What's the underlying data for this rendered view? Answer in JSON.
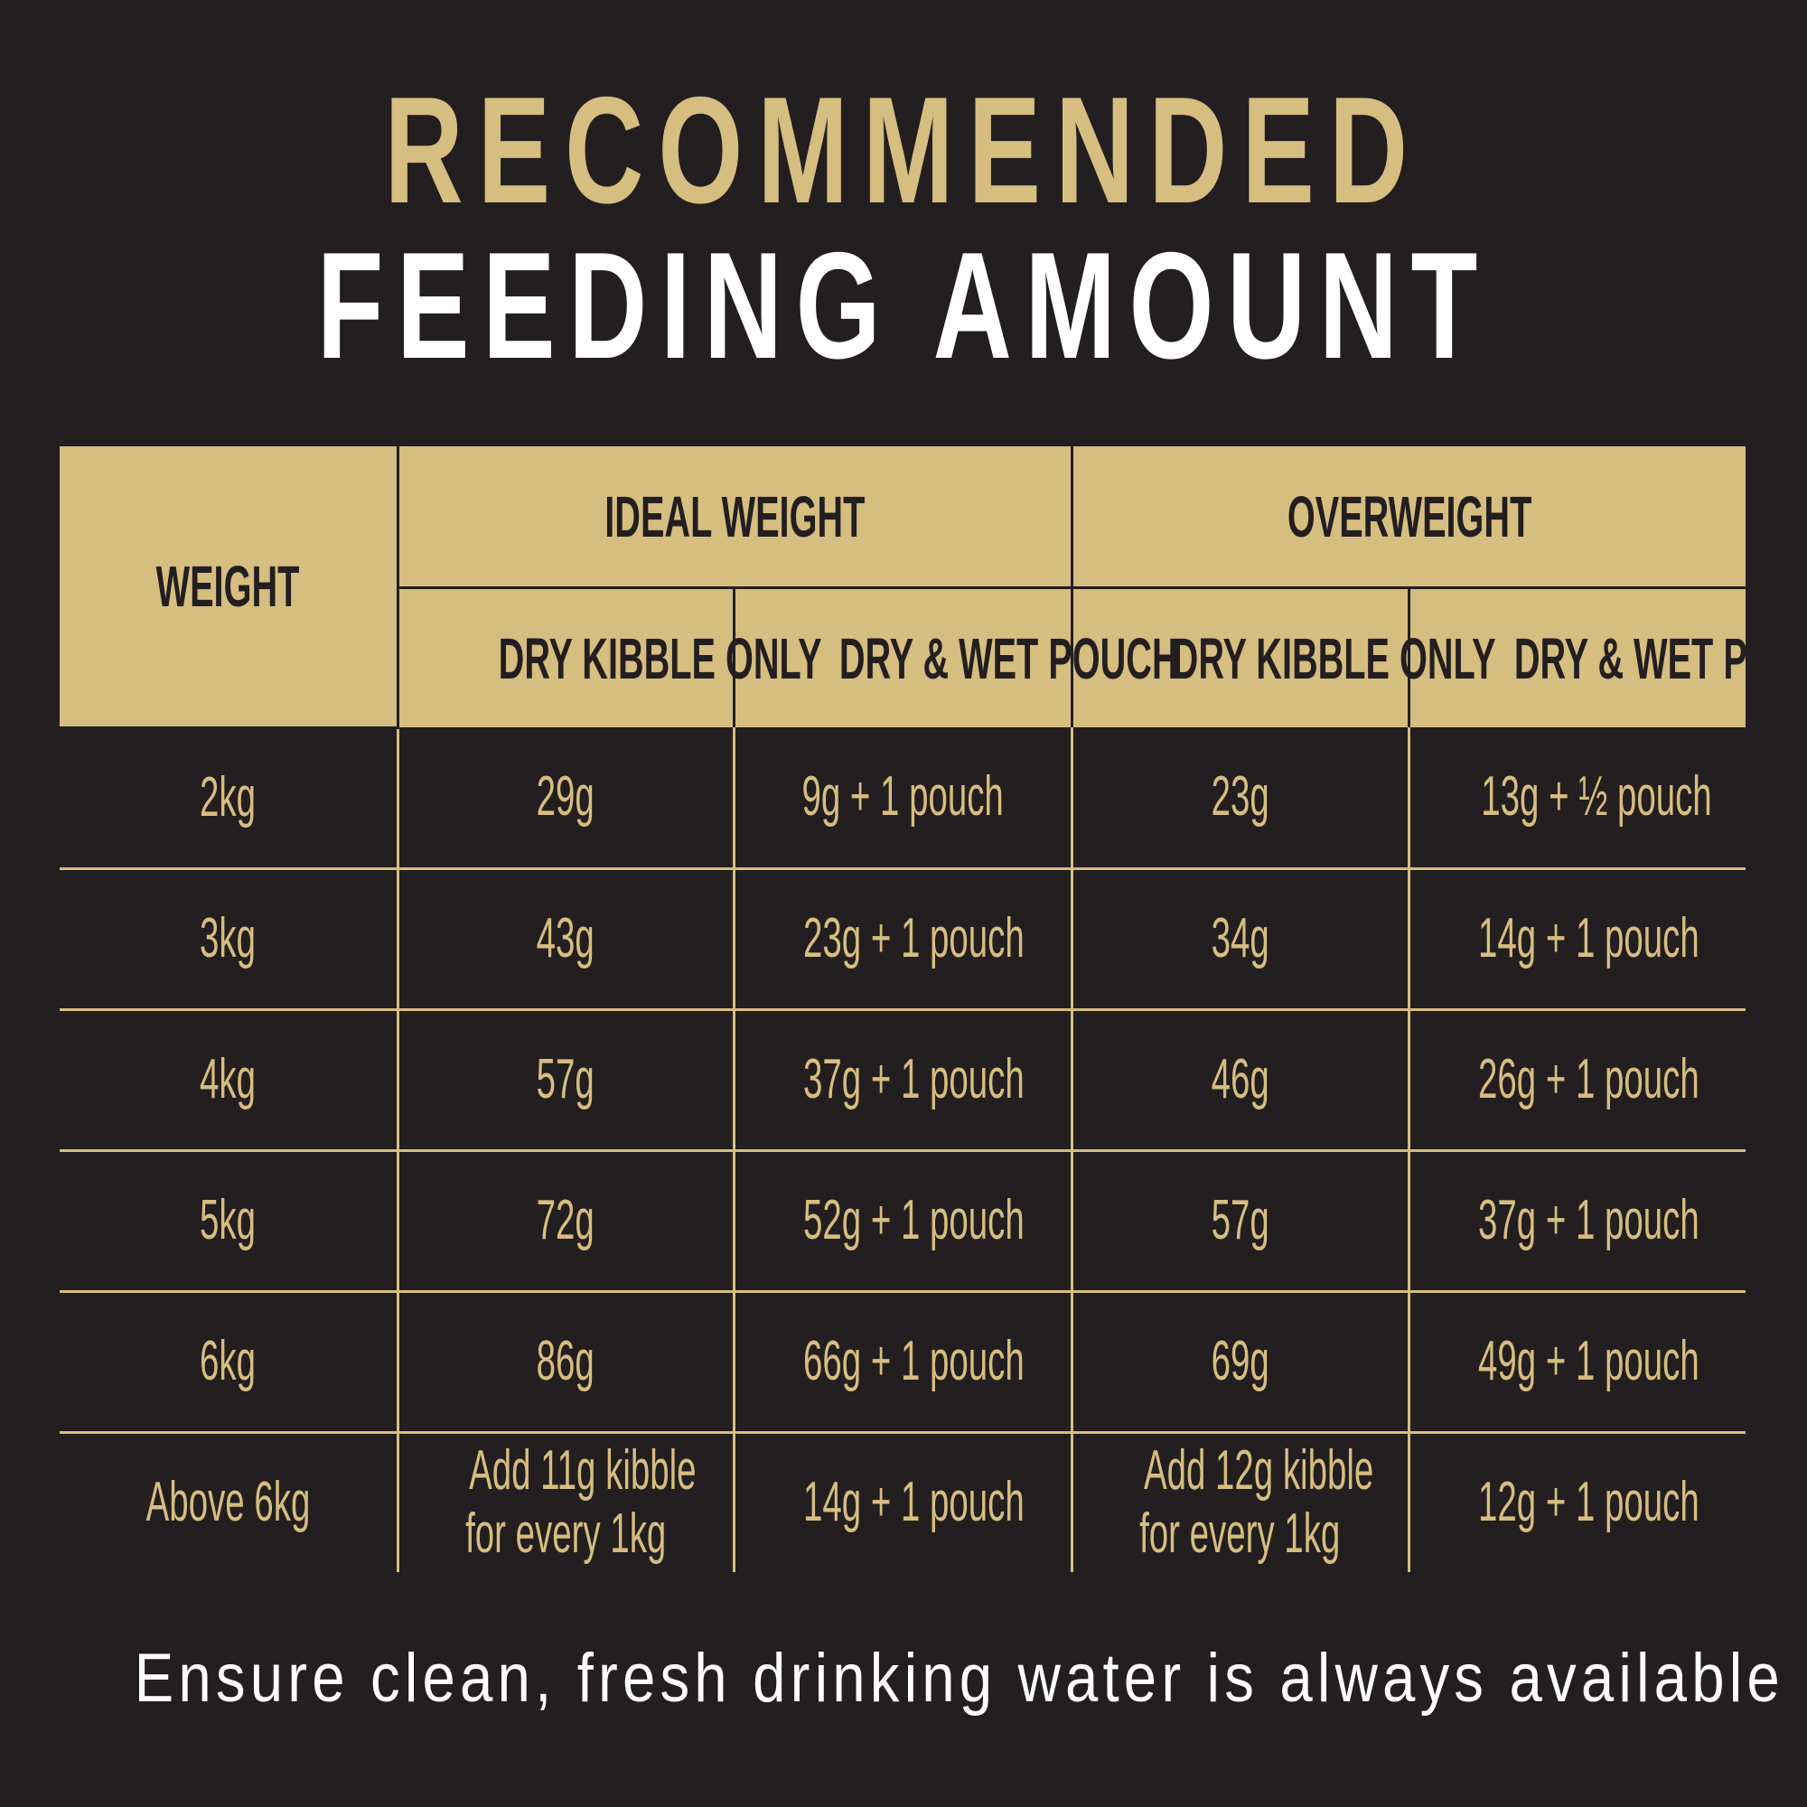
{
  "title": {
    "line1": "RECOMMENDED",
    "line2": "FEEDING AMOUNT"
  },
  "colors": {
    "background": "#231f20",
    "gold": "#d6bd80",
    "white": "#ffffff"
  },
  "table": {
    "weight_header": "WEIGHT",
    "groups": [
      "IDEAL WEIGHT",
      "OVERWEIGHT"
    ],
    "subheaders": [
      "DRY KIBBLE ONLY",
      "DRY & WET POUCH",
      "DRY KIBBLE ONLY",
      "DRY & WET POUCH"
    ],
    "rows": [
      [
        "2kg",
        "29g",
        "9g + 1 pouch",
        "23g",
        "13g + ½ pouch"
      ],
      [
        "3kg",
        "43g",
        "23g + 1 pouch",
        "34g",
        "14g + 1 pouch"
      ],
      [
        "4kg",
        "57g",
        "37g + 1 pouch",
        "46g",
        "26g + 1 pouch"
      ],
      [
        "5kg",
        "72g",
        "52g + 1 pouch",
        "57g",
        "37g + 1 pouch"
      ],
      [
        "6kg",
        "86g",
        "66g + 1 pouch",
        "69g",
        "49g + 1 pouch"
      ]
    ],
    "last_row": {
      "weight": "Above 6kg",
      "ideal_dry_line1": "Add 11g kibble",
      "ideal_dry_line2": "for every 1kg",
      "ideal_wet": "14g + 1 pouch",
      "over_dry_line1": "Add 12g kibble",
      "over_dry_line2": "for every 1kg",
      "over_wet": "12g + 1 pouch"
    }
  },
  "footer": "Ensure clean, fresh drinking water is always available"
}
